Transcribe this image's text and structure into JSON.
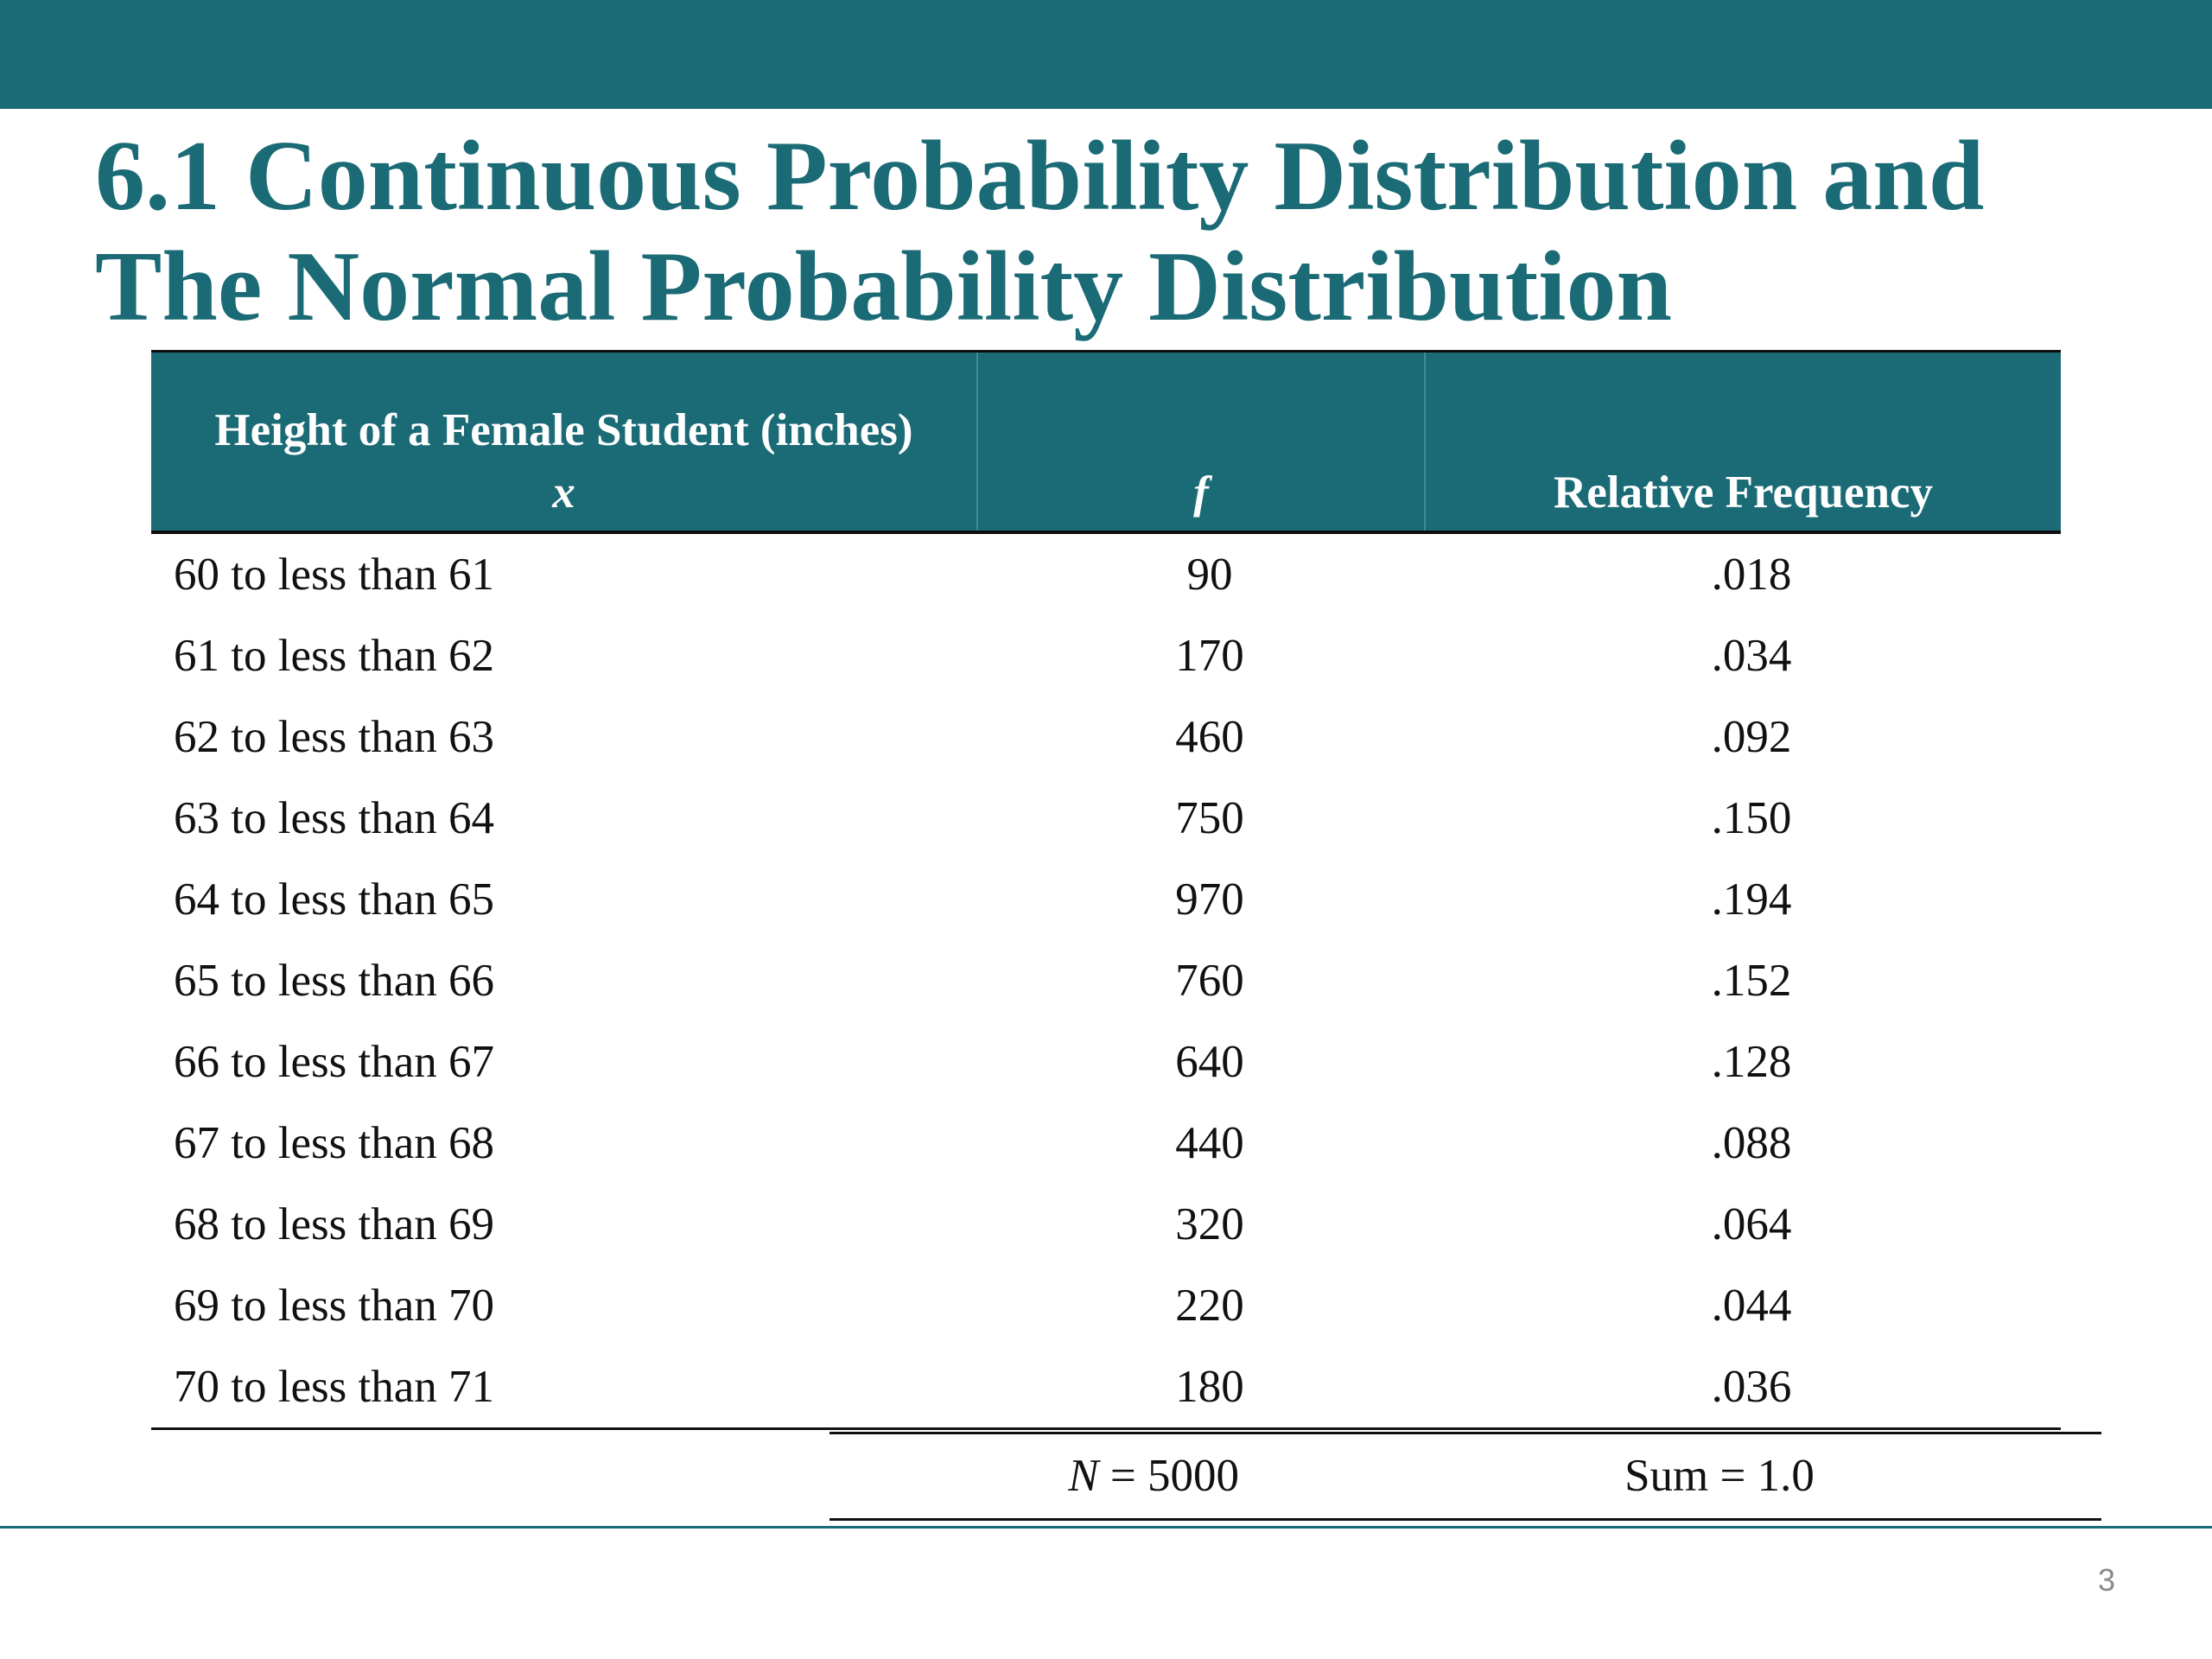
{
  "slide": {
    "title_line1": "6.1 Continuous Probability Distribution and",
    "title_line2": "The Normal Probability Distribution",
    "page_number": "3",
    "accent_color": "#1b6b76"
  },
  "table": {
    "header": {
      "col1_line1": "Height of a Female Student (inches)",
      "col1_line2": "x",
      "col2": "f",
      "col3": "Relative Frequency"
    },
    "rows": [
      {
        "range": "60 to less than 61",
        "f": "90",
        "rel": ".018"
      },
      {
        "range": "61 to less than 62",
        "f": "170",
        "rel": ".034"
      },
      {
        "range": "62 to less than 63",
        "f": "460",
        "rel": ".092"
      },
      {
        "range": "63 to less than 64",
        "f": "750",
        "rel": ".150"
      },
      {
        "range": "64 to less than 65",
        "f": "970",
        "rel": ".194"
      },
      {
        "range": "65 to less than 66",
        "f": "760",
        "rel": ".152"
      },
      {
        "range": "66 to less than 67",
        "f": "640",
        "rel": ".128"
      },
      {
        "range": "67 to less than 68",
        "f": "440",
        "rel": ".088"
      },
      {
        "range": "68 to less than 69",
        "f": "320",
        "rel": ".064"
      },
      {
        "range": "69 to less than 70",
        "f": "220",
        "rel": ".044"
      },
      {
        "range": "70 to less than 71",
        "f": "180",
        "rel": ".036"
      }
    ],
    "totals": {
      "n_var": "N",
      "n_value": " = 5000",
      "sum": "Sum = 1.0"
    }
  }
}
